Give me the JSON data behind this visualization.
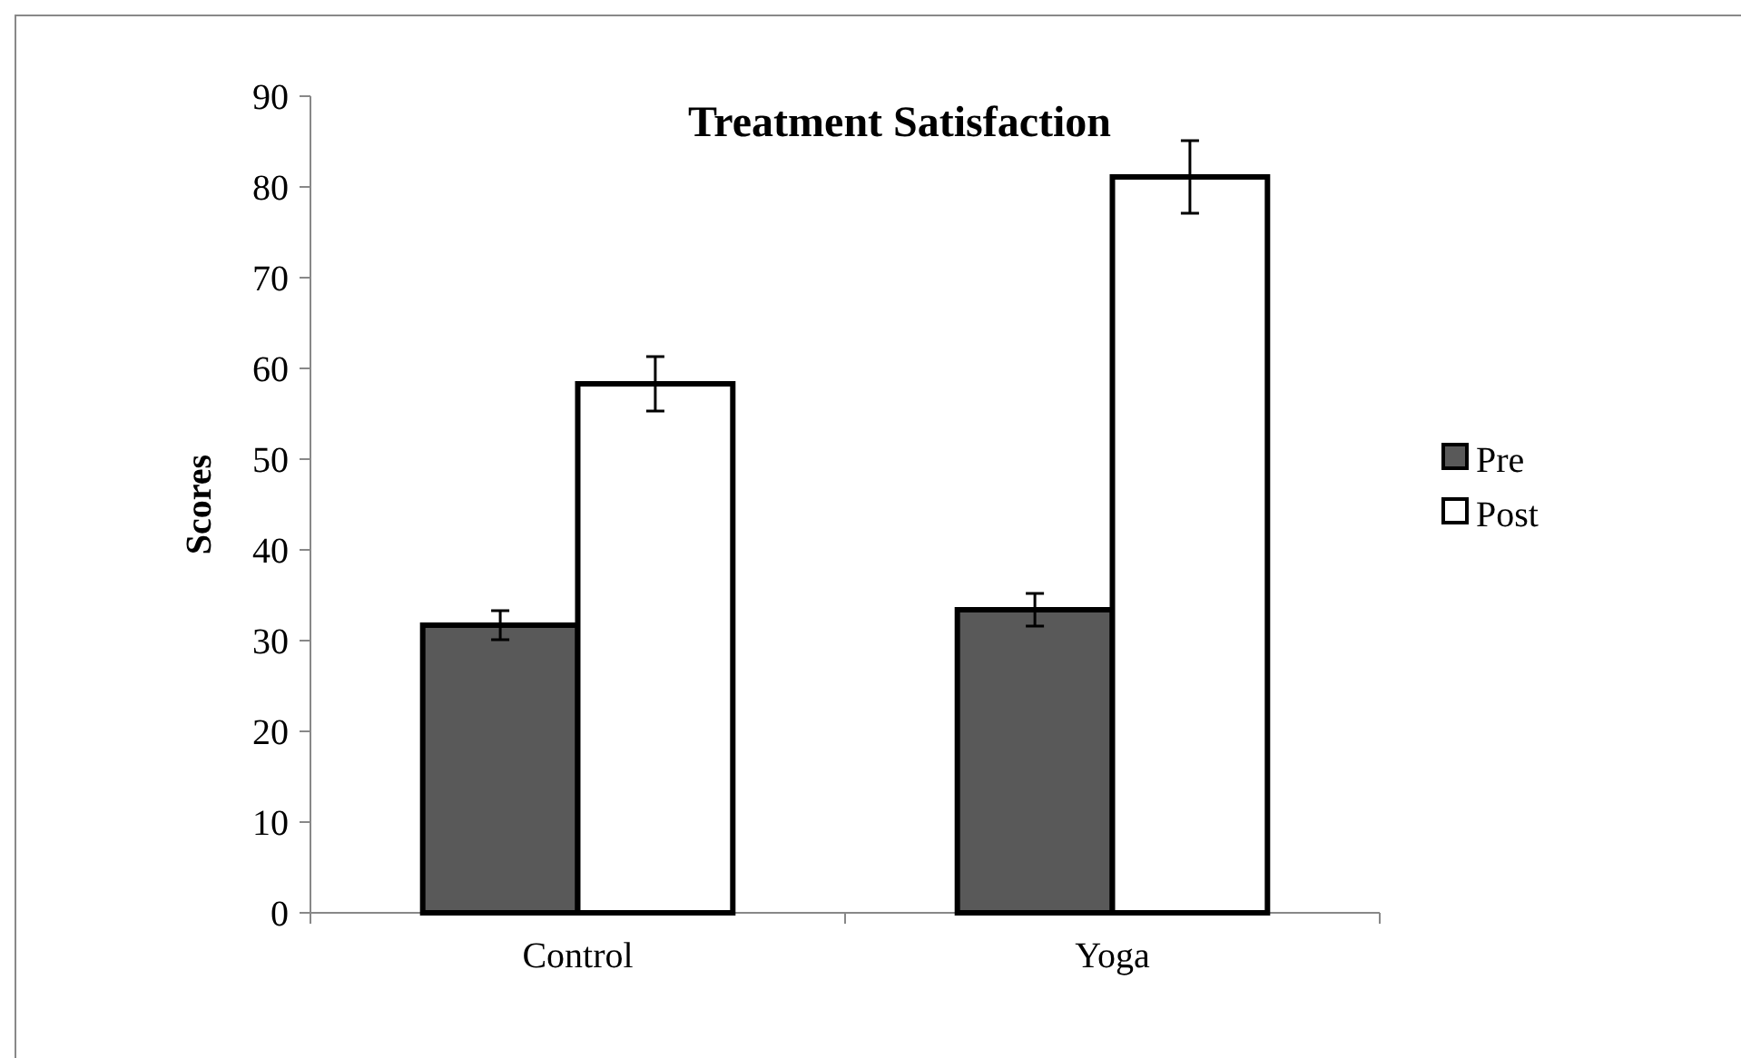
{
  "chart_data": {
    "type": "bar",
    "title": "Treatment  Satisfaction",
    "ylabel": "Scores",
    "categories": [
      "Control",
      "Yoga"
    ],
    "series": [
      {
        "name": "Pre",
        "color": "#595959",
        "values": [
          31.7,
          33.4
        ],
        "errors": [
          1.6,
          1.8
        ]
      },
      {
        "name": "Post",
        "color": "#ffffff",
        "values": [
          58.3,
          81.1
        ],
        "errors": [
          3,
          4
        ]
      }
    ],
    "ylim": [
      0,
      90
    ],
    "yticks": [
      0,
      10,
      20,
      30,
      40,
      50,
      60,
      70,
      80,
      90
    ],
    "grid": false,
    "legend": "right"
  }
}
